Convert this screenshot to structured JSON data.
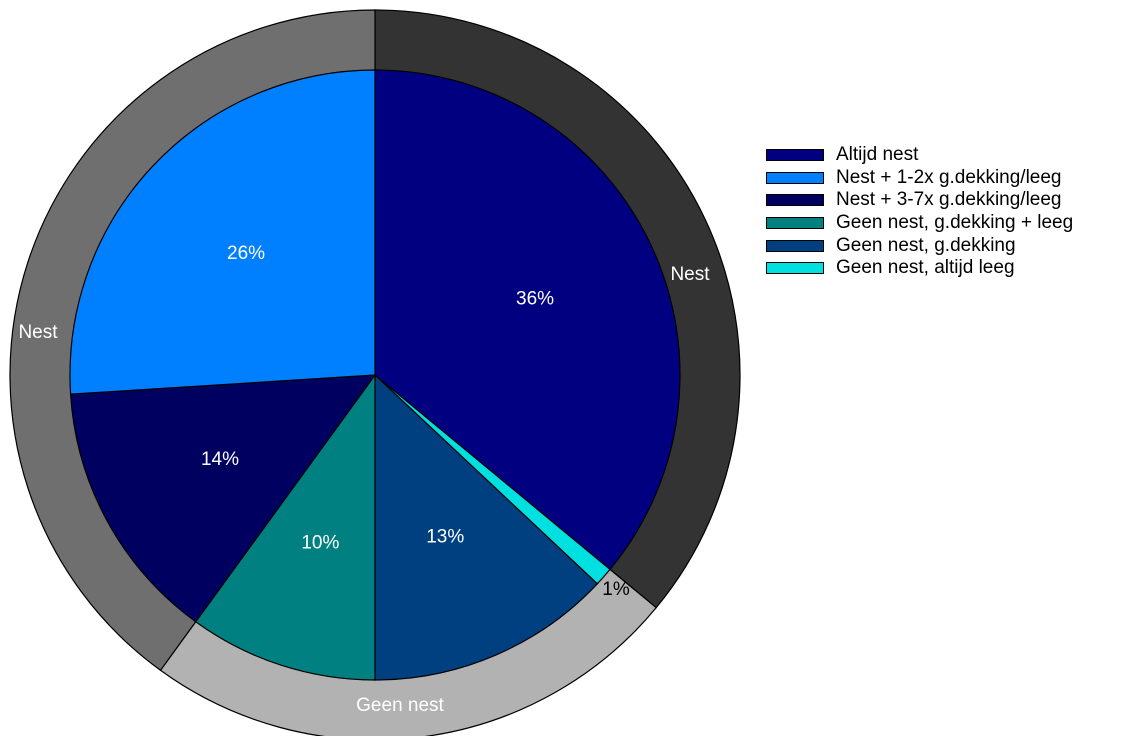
{
  "chart_data": {
    "type": "pie",
    "inner": {
      "labels": [
        "Altijd nest",
        "Nest + 1-2x g.dekking/leeg",
        "Nest + 3-7x g.dekking/leeg",
        "Geen nest, g.dekking + leeg",
        "Geen nest, g.dekking",
        "Geen nest, altijd leeg"
      ],
      "values": [
        36,
        26,
        14,
        10,
        13,
        1
      ],
      "value_labels": [
        "36%",
        "26%",
        "14%",
        "10%",
        "13%",
        "1%"
      ],
      "colors": [
        "#000080",
        "#0080FF",
        "#000060",
        "#008080",
        "#004080",
        "#00E0E0"
      ]
    },
    "outer": [
      {
        "label": "Nest",
        "value": 36,
        "color": "#333333"
      },
      {
        "label": "Geen nest",
        "value": 24,
        "color": "#B2B2B2"
      },
      {
        "label": "Nest",
        "value": 40,
        "color": "#6F6F6F"
      }
    ],
    "legend_position": "right"
  }
}
